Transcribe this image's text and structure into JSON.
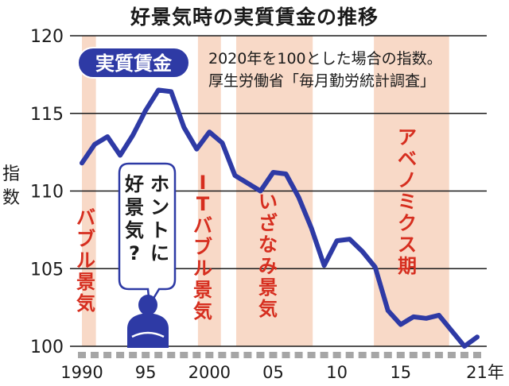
{
  "title": "好景気時の実質賃金の推移",
  "chart_data": {
    "type": "line",
    "series": [
      {
        "name": "実質賃金",
        "x": [
          1990,
          1991,
          1992,
          1993,
          1994,
          1995,
          1996,
          1997,
          1998,
          1999,
          2000,
          2001,
          2002,
          2003,
          2004,
          2005,
          2006,
          2007,
          2008,
          2009,
          2010,
          2011,
          2012,
          2013,
          2014,
          2015,
          2016,
          2017,
          2018,
          2019,
          2020,
          2021
        ],
        "values": [
          111.8,
          113.0,
          113.5,
          112.3,
          113.6,
          115.2,
          116.5,
          116.4,
          114.1,
          112.7,
          113.8,
          113.1,
          111.0,
          110.5,
          110.0,
          111.2,
          111.1,
          109.6,
          107.6,
          105.2,
          106.8,
          106.9,
          106.1,
          105.1,
          102.3,
          101.4,
          101.9,
          101.8,
          102.0,
          101.0,
          100.0,
          100.6
        ],
        "color": "#2e3aa5"
      }
    ],
    "ylabel": "指数",
    "xlim": [
      1990,
      2021
    ],
    "ylim": [
      100,
      120
    ],
    "yticks": [
      100,
      105,
      110,
      115,
      120
    ],
    "xtick_labels": [
      {
        "x": 1990,
        "label": "1990"
      },
      {
        "x": 1995,
        "label": "95"
      },
      {
        "x": 2000,
        "label": "2000"
      },
      {
        "x": 2005,
        "label": "05"
      },
      {
        "x": 2010,
        "label": "10"
      },
      {
        "x": 2015,
        "label": "15"
      },
      {
        "x": 2021,
        "label": "21年"
      }
    ],
    "grid": true,
    "note_lines": [
      "2020年を100とした場合の指数。",
      "厚生労働省「毎月勤労統計調査」"
    ],
    "series_badge": "実質賃金",
    "periods": [
      {
        "label": "バブル景気",
        "start": 1990.0,
        "end": 1991.1
      },
      {
        "label": "ITバブル景気",
        "start": 1999.1,
        "end": 2000.9
      },
      {
        "label": "いざなみ景気",
        "start": 2002.1,
        "end": 2008.1
      },
      {
        "label": "アベノミクス期",
        "start": 2012.9,
        "end": 2018.8
      }
    ],
    "speech_bubble": "ホントに好景気?",
    "colors": {
      "band": "#f8d9c7",
      "period_text": "#d62e1f",
      "line": "#2e3aa5",
      "grid": "#1a1a1a",
      "tick_box": "#a6a6a6"
    }
  }
}
